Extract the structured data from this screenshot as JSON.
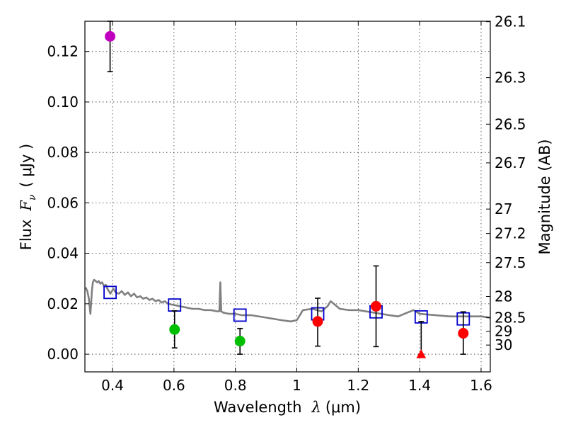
{
  "chart_data": {
    "type": "scatter",
    "xlabel_prefix": "Wavelength",
    "xlabel_unit": "(μm)",
    "ylabel_prefix": "Flux",
    "ylabel_unit": "( μJy )",
    "y2label": "Magnitude (AB)",
    "xlim": [
      0.31,
      1.63
    ],
    "ylim": [
      -0.007,
      0.132
    ],
    "grid": true,
    "x_ticks": [
      {
        "value": 0.4,
        "label": "0.4"
      },
      {
        "value": 0.6,
        "label": "0.6"
      },
      {
        "value": 0.8,
        "label": "0.8"
      },
      {
        "value": 1.0,
        "label": "1"
      },
      {
        "value": 1.2,
        "label": "1.2"
      },
      {
        "value": 1.4,
        "label": "1.4"
      },
      {
        "value": 1.6,
        "label": "1.6"
      }
    ],
    "y_ticks": [
      {
        "value": 0.0,
        "label": "0.00"
      },
      {
        "value": 0.02,
        "label": "0.02"
      },
      {
        "value": 0.04,
        "label": "0.04"
      },
      {
        "value": 0.06,
        "label": "0.06"
      },
      {
        "value": 0.08,
        "label": "0.08"
      },
      {
        "value": 0.1,
        "label": "0.10"
      },
      {
        "value": 0.12,
        "label": "0.12"
      }
    ],
    "mag_ticks": [
      {
        "label": "26.1",
        "mag": 26.1
      },
      {
        "label": "26.3",
        "mag": 26.3
      },
      {
        "label": "26.5",
        "mag": 26.5
      },
      {
        "label": "26.7",
        "mag": 26.7
      },
      {
        "label": "27",
        "mag": 27.0
      },
      {
        "label": "27.2",
        "mag": 27.2
      },
      {
        "label": "27.5",
        "mag": 27.5
      },
      {
        "label": "28",
        "mag": 28.0
      },
      {
        "label": "28.5",
        "mag": 28.5
      },
      {
        "label": "29",
        "mag": 29.0
      },
      {
        "label": "30",
        "mag": 30.0
      }
    ],
    "sed_model": {
      "name": "SED model",
      "color": "#808080",
      "x": [
        0.312,
        0.318,
        0.323,
        0.328,
        0.333,
        0.336,
        0.34,
        0.345,
        0.35,
        0.355,
        0.36,
        0.366,
        0.372,
        0.378,
        0.383,
        0.388,
        0.393,
        0.398,
        0.403,
        0.41,
        0.42,
        0.43,
        0.44,
        0.45,
        0.46,
        0.47,
        0.48,
        0.49,
        0.5,
        0.51,
        0.52,
        0.53,
        0.54,
        0.55,
        0.56,
        0.57,
        0.58,
        0.6,
        0.62,
        0.64,
        0.66,
        0.68,
        0.7,
        0.72,
        0.74,
        0.748,
        0.751,
        0.754,
        0.76,
        0.78,
        0.8,
        0.82,
        0.85,
        0.9,
        0.95,
        0.98,
        1.0,
        1.02,
        1.05,
        1.08,
        1.1,
        1.11,
        1.12,
        1.14,
        1.17,
        1.2,
        1.25,
        1.3,
        1.33,
        1.36,
        1.38,
        1.4,
        1.45,
        1.5,
        1.55,
        1.6,
        1.63
      ],
      "y": [
        0.0265,
        0.025,
        0.022,
        0.016,
        0.0255,
        0.0285,
        0.0295,
        0.029,
        0.0285,
        0.029,
        0.028,
        0.0285,
        0.027,
        0.0275,
        0.026,
        0.025,
        0.024,
        0.025,
        0.026,
        0.0245,
        0.024,
        0.025,
        0.0235,
        0.0245,
        0.023,
        0.024,
        0.0225,
        0.023,
        0.022,
        0.0225,
        0.0215,
        0.022,
        0.021,
        0.0215,
        0.0205,
        0.021,
        0.02,
        0.0195,
        0.019,
        0.0185,
        0.018,
        0.018,
        0.0175,
        0.0175,
        0.017,
        0.017,
        0.0285,
        0.017,
        0.0165,
        0.016,
        0.016,
        0.0155,
        0.0155,
        0.0145,
        0.0135,
        0.013,
        0.0135,
        0.0175,
        0.018,
        0.017,
        0.019,
        0.021,
        0.02,
        0.018,
        0.0175,
        0.0175,
        0.0165,
        0.0155,
        0.015,
        0.0165,
        0.0175,
        0.016,
        0.0155,
        0.015,
        0.015,
        0.015,
        0.0145
      ]
    },
    "model_points": {
      "name": "model photometry",
      "marker": "open-square",
      "color": "#0000cc",
      "x": [
        0.392,
        0.602,
        0.815,
        1.068,
        1.258,
        1.405,
        1.542
      ],
      "y": [
        0.0245,
        0.0195,
        0.0155,
        0.016,
        0.0168,
        0.0148,
        0.014
      ]
    },
    "observations": [
      {
        "x": 0.392,
        "y": 0.126,
        "err_low": 0.014,
        "err_high": 0.006,
        "color": "#bf00bf",
        "marker": "circle"
      },
      {
        "x": 0.602,
        "y": 0.0098,
        "err_low": 0.0073,
        "err_high": 0.0074,
        "color": "#00bf00",
        "marker": "circle"
      },
      {
        "x": 0.815,
        "y": 0.0052,
        "err_low": 0.0052,
        "err_high": 0.005,
        "color": "#00bf00",
        "marker": "circle"
      },
      {
        "x": 1.068,
        "y": 0.013,
        "err_low": 0.0098,
        "err_high": 0.0092,
        "color": "#ff0000",
        "marker": "circle"
      },
      {
        "x": 1.258,
        "y": 0.019,
        "err_low": 0.016,
        "err_high": 0.016,
        "color": "#ff0000",
        "marker": "circle"
      },
      {
        "x": 1.405,
        "y": 0.0,
        "err_low": 0.0,
        "err_high": 0.013,
        "color": "#ff0000",
        "marker": "triangle"
      },
      {
        "x": 1.542,
        "y": 0.0083,
        "err_low": 0.0083,
        "err_high": 0.0085,
        "color": "#ff0000",
        "marker": "circle"
      }
    ]
  }
}
